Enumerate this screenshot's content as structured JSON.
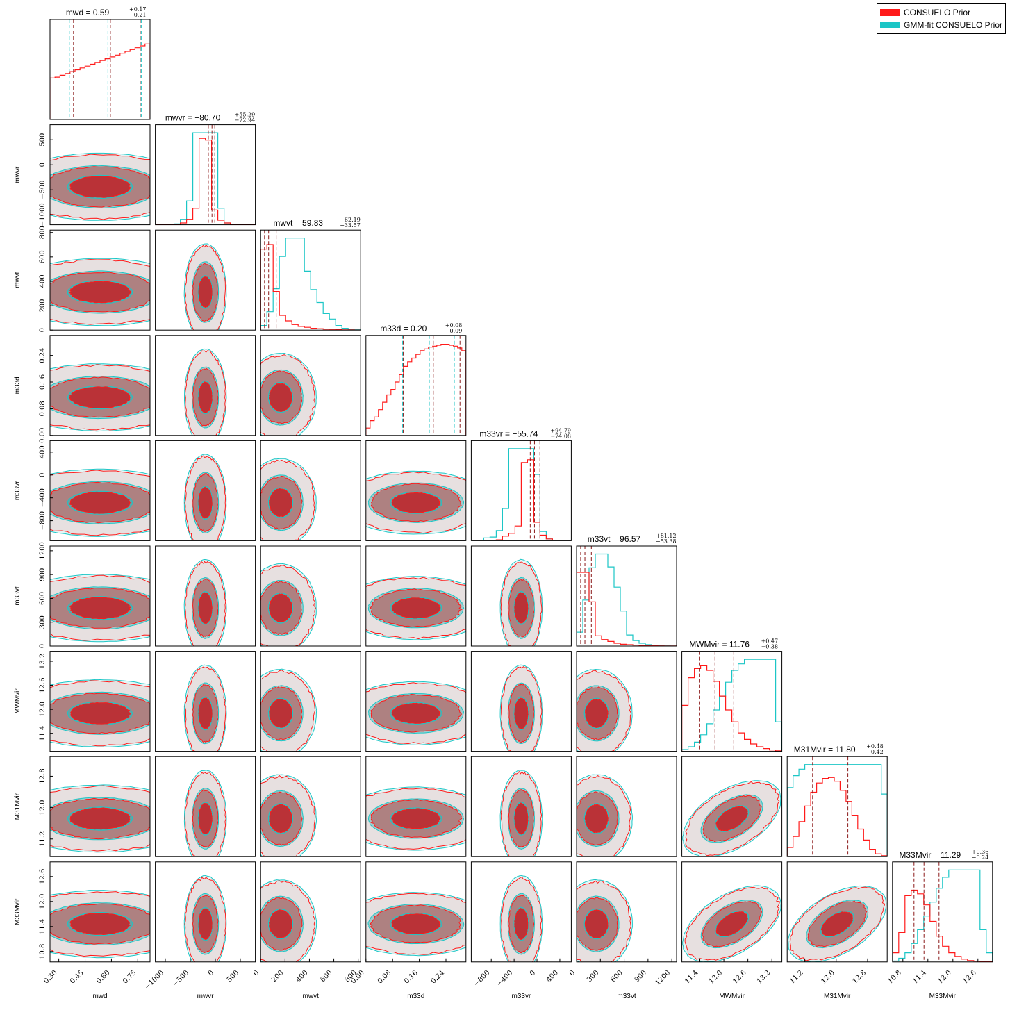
{
  "colors": {
    "prior": "#ff1a1a",
    "gmm": "#1cc6c6",
    "prior_fill_inner": "#c81e24",
    "prior_fill_mid": "#b07474",
    "prior_fill_outer": "#e8dcdc",
    "gmm_fill_inner": "#5fa3a6",
    "gmm_fill_mid": "#94c4c6",
    "gmm_fill_outer": "#dff4f4",
    "quantile_line": "#8b1a1a"
  },
  "legend": {
    "placement": "top-right",
    "items": [
      {
        "label": "CONSUELO Prior",
        "color": "#ff1a1a"
      },
      {
        "label": "GMM-fit CONSUELO Prior",
        "color": "#1cc6c6"
      }
    ]
  },
  "chart_data": {
    "type": "corner",
    "series": [
      {
        "name": "CONSUELO Prior"
      },
      {
        "name": "GMM-fit CONSUELO Prior"
      }
    ],
    "params": [
      {
        "name": "mwd",
        "title": "mwd = 0.59",
        "sup": "+0.17",
        "sub": "−0.21",
        "median": 0.59,
        "range": [
          0.25,
          0.82
        ],
        "ticks": [
          "0.30",
          "0.45",
          "0.60",
          "0.75"
        ],
        "tickvals": [
          0.3,
          0.45,
          0.6,
          0.75
        ],
        "quantiles": [
          0.38,
          0.59,
          0.76
        ],
        "gmm_quantiles": [
          0.36,
          0.58,
          0.77
        ],
        "hist_prior": [
          0.45,
          0.46,
          0.48,
          0.5,
          0.52,
          0.54,
          0.56,
          0.58,
          0.6,
          0.62,
          0.64,
          0.66,
          0.68,
          0.7,
          0.72,
          0.74,
          0.76,
          0.78,
          0.8,
          0.82
        ],
        "hist_gmm": []
      },
      {
        "name": "mwvr",
        "title": "mwvr = −80.70",
        "sup": "+55.29",
        "sub": "−72.94",
        "median": -80.7,
        "range": [
          -1200,
          800
        ],
        "ticks": [
          "−1000",
          "−500",
          "0",
          "500"
        ],
        "tickvals": [
          -1000,
          -500,
          0,
          500
        ],
        "quantiles": [
          -153.64,
          -80.7,
          -25.41
        ],
        "gmm_quantiles": [],
        "hist_prior": [
          0,
          0,
          0,
          0,
          0.02,
          0.06,
          0.18,
          0.94,
          0.92,
          0.16,
          0.05,
          0.02,
          0,
          0,
          0,
          0
        ],
        "hist_gmm": [
          0,
          0,
          0,
          0.01,
          0.06,
          0.26,
          1,
          1,
          1,
          1,
          0.18,
          0.02,
          0,
          0,
          0,
          0
        ]
      },
      {
        "name": "mwvt",
        "title": "mwvt = 59.83",
        "sup": "+62.19",
        "sub": "−33.57",
        "median": 59.83,
        "range": [
          0,
          820
        ],
        "ticks": [
          "0",
          "200",
          "400",
          "600",
          "800"
        ],
        "tickvals": [
          0,
          200,
          400,
          600,
          800
        ],
        "quantiles": [
          26.26,
          59.83,
          122.02
        ],
        "gmm_quantiles": [],
        "hist_prior": [
          0.88,
          0.93,
          0.42,
          0.16,
          0.1,
          0.06,
          0.04,
          0.03,
          0.02,
          0.015,
          0.01,
          0.008,
          0.005,
          0.003,
          0.002,
          0.001
        ],
        "hist_gmm": [
          0.05,
          0.2,
          0.45,
          0.8,
          1,
          1,
          1,
          0.64,
          0.44,
          0.3,
          0.18,
          0.12,
          0.05,
          0.02,
          0.01,
          0.005
        ]
      },
      {
        "name": "m33d",
        "title": "m33d = 0.20",
        "sup": "+0.08",
        "sub": "−0.09",
        "median": 0.2,
        "range": [
          0.0,
          0.3
        ],
        "ticks": [
          "0.00",
          "0.08",
          "0.16",
          "0.24"
        ],
        "tickvals": [
          0.0,
          0.08,
          0.16,
          0.24
        ],
        "quantiles": [
          0.11,
          0.2,
          0.28
        ],
        "gmm_quantiles": [
          0.11,
          0.19,
          0.265
        ],
        "hist_prior": [
          0.08,
          0.16,
          0.2,
          0.28,
          0.36,
          0.44,
          0.5,
          0.58,
          0.66,
          0.75,
          0.8,
          0.84,
          0.88,
          0.92,
          0.94,
          0.96,
          0.97,
          0.98,
          0.99,
          0.99,
          0.98,
          0.97,
          0.95,
          0.92
        ],
        "hist_gmm": []
      },
      {
        "name": "m33vr",
        "title": "m33vr = −55.74",
        "sup": "+94.79",
        "sub": "−74.08",
        "median": -55.74,
        "range": [
          -1150,
          600
        ],
        "ticks": [
          "−800",
          "−400",
          "0",
          "400"
        ],
        "tickvals": [
          -800,
          -400,
          0,
          400
        ],
        "quantiles": [
          -129.82,
          -55.74,
          39.05
        ],
        "gmm_quantiles": [],
        "hist_prior": [
          0,
          0,
          0,
          0,
          0.01,
          0.05,
          0.08,
          0.16,
          0.85,
          0.88,
          0.2,
          0.06,
          0.02,
          0,
          0,
          0
        ],
        "hist_gmm": [
          0,
          0,
          0.03,
          0.04,
          0.11,
          0.35,
          1,
          1,
          1,
          1,
          0.72,
          0.1,
          0.02,
          0,
          0,
          0
        ]
      },
      {
        "name": "m33vt",
        "title": "m33vt = 96.57",
        "sup": "+81.12",
        "sub": "−53.38",
        "median": 96.57,
        "range": [
          0,
          1260
        ],
        "ticks": [
          "0",
          "300",
          "600",
          "900",
          "1200"
        ],
        "tickvals": [
          0,
          300,
          600,
          900,
          1200
        ],
        "quantiles": [
          43.19,
          96.57,
          177.69
        ],
        "gmm_quantiles": [],
        "hist_prior": [
          0.8,
          0.8,
          0.48,
          0.11,
          0.07,
          0.05,
          0.03,
          0.02,
          0.015,
          0.01,
          0.007,
          0.005,
          0.003,
          0.002,
          0.001,
          0.001
        ],
        "hist_gmm": [
          0.15,
          0.5,
          0.85,
          1,
          1,
          0.86,
          0.64,
          0.38,
          0.12,
          0.06,
          0.03,
          0.015,
          0.008,
          0.004,
          0.002,
          0.001
        ]
      },
      {
        "name": "MWMvir",
        "title": "MWMvir = 11.76",
        "sup": "+0.47",
        "sub": "−0.38",
        "median": 11.76,
        "range": [
          10.95,
          13.45
        ],
        "ticks": [
          "11.4",
          "12.0",
          "12.6",
          "13.2"
        ],
        "tickvals": [
          11.4,
          12.0,
          12.6,
          13.2
        ],
        "quantiles": [
          11.38,
          11.76,
          12.23
        ],
        "gmm_quantiles": [],
        "hist_prior": [
          0.5,
          0.8,
          0.9,
          0.93,
          0.88,
          0.76,
          0.6,
          0.45,
          0.32,
          0.2,
          0.13,
          0.08,
          0.05,
          0.03,
          0.015,
          0.005
        ],
        "hist_gmm": [
          0.02,
          0.05,
          0.1,
          0.18,
          0.3,
          0.45,
          0.6,
          0.75,
          0.88,
          0.95,
          1,
          1,
          1,
          1,
          1,
          0.32
        ]
      },
      {
        "name": "M31Mvir",
        "title": "M31Mvir = 11.80",
        "sup": "+0.48",
        "sub": "−0.42",
        "median": 11.8,
        "range": [
          10.75,
          13.3
        ],
        "ticks": [
          "11.2",
          "12.0",
          "12.8"
        ],
        "tickvals": [
          11.2,
          12.0,
          12.8
        ],
        "quantiles": [
          11.38,
          11.8,
          12.28
        ],
        "gmm_quantiles": [],
        "hist_prior": [
          0.1,
          0.22,
          0.38,
          0.55,
          0.7,
          0.8,
          0.85,
          0.86,
          0.82,
          0.72,
          0.6,
          0.45,
          0.3,
          0.18,
          0.08,
          0.03,
          0.01
        ],
        "hist_gmm": [
          0.75,
          0.88,
          0.95,
          1,
          1,
          1,
          1,
          1,
          1,
          1,
          1,
          1,
          1,
          1,
          1,
          1,
          0.68
        ]
      },
      {
        "name": "M33Mvir",
        "title": "M33Mvir = 11.29",
        "sup": "+0.36",
        "sub": "−0.24",
        "median": 11.29,
        "range": [
          10.55,
          12.95
        ],
        "ticks": [
          "10.8",
          "11.4",
          "12.0",
          "12.6"
        ],
        "tickvals": [
          10.8,
          11.4,
          12.0,
          12.6
        ],
        "quantiles": [
          11.05,
          11.29,
          11.65
        ],
        "gmm_quantiles": [],
        "hist_prior": [
          0.1,
          0.32,
          0.72,
          0.78,
          0.74,
          0.62,
          0.44,
          0.28,
          0.17,
          0.1,
          0.06,
          0.03,
          0.015,
          0.008,
          0.004,
          0.002
        ],
        "hist_gmm": [
          0.01,
          0.04,
          0.1,
          0.2,
          0.35,
          0.5,
          0.65,
          0.8,
          0.92,
          1,
          1,
          1,
          1,
          1,
          0.35,
          0.1
        ]
      }
    ]
  }
}
